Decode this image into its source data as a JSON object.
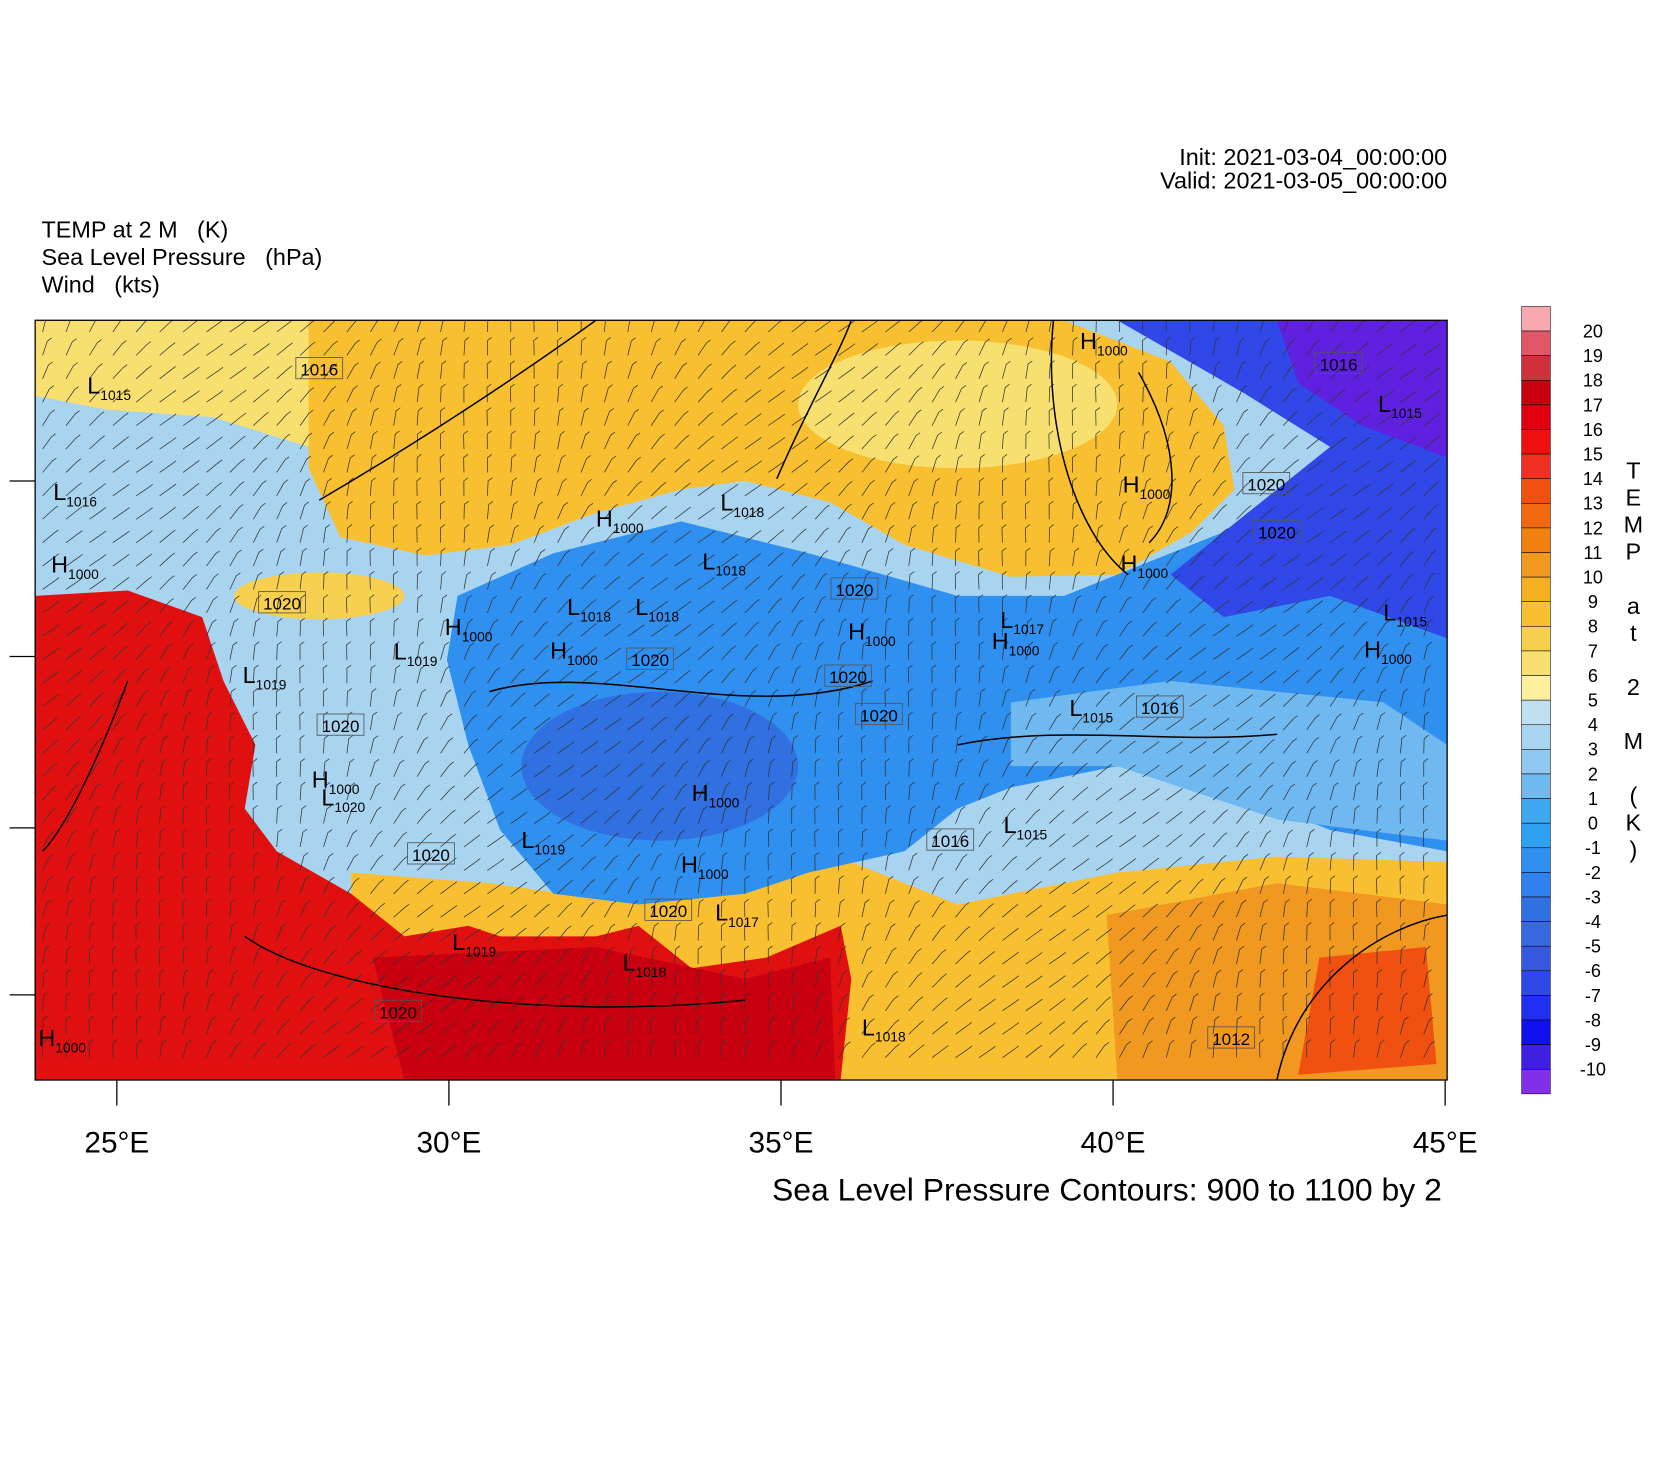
{
  "header": {
    "titles": [
      "TEMP at 2 M   (K)",
      "Sea Level Pressure   (hPa)",
      "Wind   (kts)"
    ],
    "init": "Init: 2021-03-04_00:00:00",
    "valid": "Valid: 2021-03-05_00:00:00"
  },
  "map": {
    "xlim": [
      23.77,
      45.03
    ],
    "xticks": [
      {
        "value": 25,
        "label": "25°E"
      },
      {
        "value": 30,
        "label": "30°E"
      },
      {
        "value": 35,
        "label": "35°E"
      },
      {
        "value": 40,
        "label": "40°E"
      },
      {
        "value": 45,
        "label": "45°E"
      }
    ],
    "footer": "Sea Level Pressure Contours: 900 to 1100 by 2",
    "pressure_centers": [
      {
        "symbol": "L",
        "value": 1015
      },
      {
        "symbol": "L",
        "value": 1016
      },
      {
        "symbol": "H",
        "value": 1000
      },
      {
        "symbol": "L",
        "value": 1015
      },
      {
        "symbol": "H",
        "value": 1000
      },
      {
        "symbol": "H",
        "value": 1000
      },
      {
        "symbol": "H",
        "value": 1000
      },
      {
        "symbol": "H",
        "value": 1000
      },
      {
        "symbol": "L",
        "value": 1018
      },
      {
        "symbol": "L",
        "value": 1018
      },
      {
        "symbol": "L",
        "value": 1018
      },
      {
        "symbol": "L",
        "value": 1018
      },
      {
        "symbol": "H",
        "value": 1000
      },
      {
        "symbol": "L",
        "value": 1019
      },
      {
        "symbol": "H",
        "value": 1000
      },
      {
        "symbol": "H",
        "value": 1000
      },
      {
        "symbol": "L",
        "value": 1019
      },
      {
        "symbol": "H",
        "value": 1000
      },
      {
        "symbol": "L",
        "value": 1020
      },
      {
        "symbol": "L",
        "value": 1015
      },
      {
        "symbol": "H",
        "value": 1000
      },
      {
        "symbol": "L",
        "value": 1019
      },
      {
        "symbol": "H",
        "value": 1000
      },
      {
        "symbol": "L",
        "value": 1015
      },
      {
        "symbol": "L",
        "value": 1017
      },
      {
        "symbol": "L",
        "value": 1019
      },
      {
        "symbol": "L",
        "value": 1018
      },
      {
        "symbol": "L",
        "value": 1018
      },
      {
        "symbol": "H",
        "value": 1000
      },
      {
        "symbol": "L",
        "value": 1015
      },
      {
        "symbol": "H",
        "value": 1000
      },
      {
        "symbol": "L",
        "value": 1017
      },
      {
        "symbol": "H",
        "value": 1000
      }
    ],
    "contour_labels": [
      1016,
      1016,
      1020,
      1020,
      1020,
      1020,
      1020,
      1020,
      1020,
      1020,
      1016,
      1020,
      1016,
      1020,
      1020,
      1012
    ]
  },
  "colorbar": {
    "title": "TEMP at 2 M (K)",
    "levels": [
      20,
      19,
      18,
      17,
      16,
      15,
      14,
      13,
      12,
      11,
      10,
      9,
      8,
      7,
      6,
      5,
      4,
      3,
      2,
      1,
      0,
      -1,
      -2,
      -3,
      -4,
      -5,
      -6,
      -7,
      -8,
      -9,
      -10
    ],
    "colors": [
      "#f7a8b0",
      "#e05868",
      "#d0303a",
      "#c80010",
      "#e00010",
      "#f01010",
      "#f03020",
      "#f05010",
      "#f06810",
      "#f08010",
      "#f09820",
      "#f5b020",
      "#f8c030",
      "#f8d050",
      "#f8e070",
      "#fff0a0",
      "#c0e0f0",
      "#a8d4f0",
      "#90c8f0",
      "#70b8f0",
      "#40a8f0",
      "#30a0f0",
      "#3090f0",
      "#3080f0",
      "#3070e0",
      "#3868e0",
      "#3858e0",
      "#3048e8",
      "#2030f0",
      "#1010f0",
      "#4020e0",
      "#8030e8"
    ]
  }
}
